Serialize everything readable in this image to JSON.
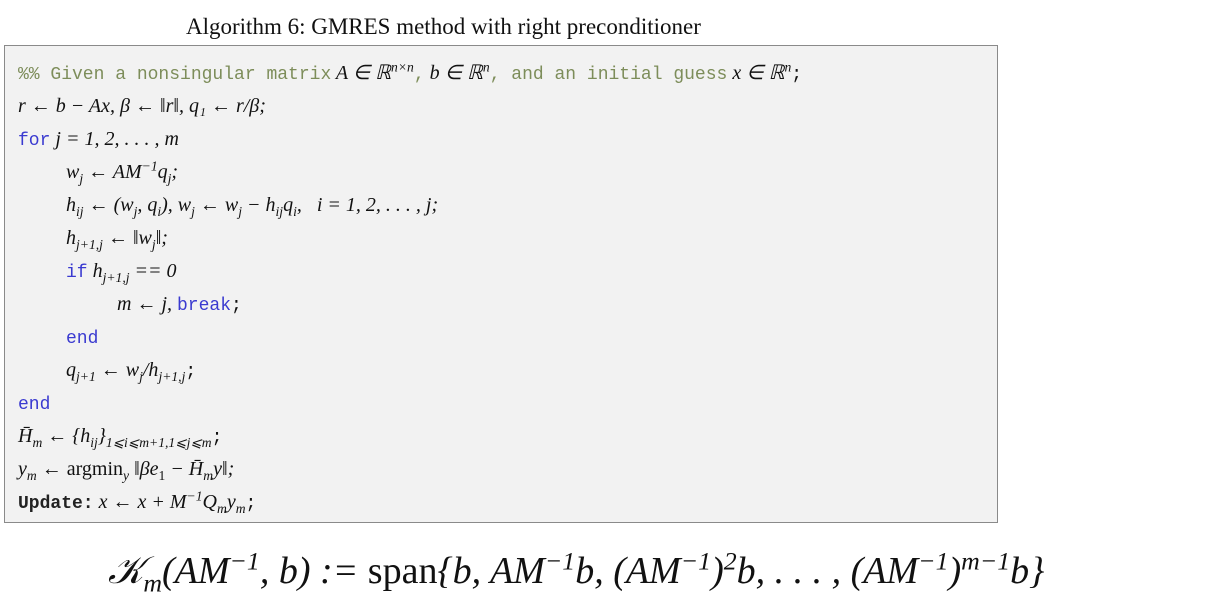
{
  "caption": "Algorithm 6: GMRES method with right preconditioner",
  "algorithm": {
    "comment_prefix": "%% Given a nonsingular matrix",
    "comment_a": "A ∈ ℝ",
    "comment_a_sup": "n×n",
    "comment_comma": ",",
    "comment_b": "b ∈ ℝ",
    "comment_b_sup": "n",
    "comment_mid": ", and an initial guess",
    "comment_x": "x ∈ ℝ",
    "comment_x_sup": "n",
    "comment_end": ";",
    "line_init": "r ← b − Ax,  β ← ‖r‖,  q₁ ← r/β;",
    "for_kw": "for",
    "for_range": "j = 1, 2, . . . , m",
    "line_w": "w",
    "line_w_rest": " ← AM",
    "line_w_rest2": "q",
    "line_h": "h",
    "line_h_mid": " ← (w",
    "line_h_mid2": ", q",
    "line_h_mid3": "), w",
    "line_h_mid4": " ← w",
    "line_h_mid5": " − h",
    "line_h_mid6": "q",
    "line_h_range": "i = 1, 2, . . . , j;",
    "line_hnorm": "h",
    "line_hnorm_rest": " ← ‖w",
    "line_hnorm_end": "‖;",
    "if_kw": "if",
    "if_cond_h": "h",
    "if_cond_rest": " == 0",
    "line_break_m": "m ← j,",
    "break_kw": "break",
    "semicolon": ";",
    "end_kw": "end",
    "line_q": "q",
    "line_q_rest": " ← w",
    "line_q_rest2": "/h",
    "line_q_end": ";",
    "end_kw_outer": "end",
    "line_H": "H̄",
    "line_H_rest": " ← {h",
    "line_H_rest2": "}",
    "line_H_end": ";",
    "line_y": "y",
    "line_y_rest": " ← ",
    "line_y_argmin": "argmin",
    "line_y_rest2": " ‖βe",
    "line_y_rest3": " − H̄",
    "line_y_rest4": "y‖;",
    "update_kw": "Update:",
    "update_expr": "x ← x + M",
    "update_expr2": "Q",
    "update_expr3": "y",
    "update_end": ";"
  },
  "formula": {
    "lhs": "𝒦",
    "lhs_sub": "m",
    "lhs_args": "(AM",
    "lhs_args_sup": "−1",
    "lhs_args_end": ", b) := ",
    "span": "span",
    "rhs1": "{b, AM",
    "rhs1_sup": "−1",
    "rhs2": "b, (AM",
    "rhs2_sup": "−1",
    "rhs3": ")",
    "rhs3_sup": "2",
    "rhs4": "b, . . . , (AM",
    "rhs4_sup": "−1",
    "rhs5": ")",
    "rhs5_sup": "m−1",
    "rhs6": "b}"
  }
}
